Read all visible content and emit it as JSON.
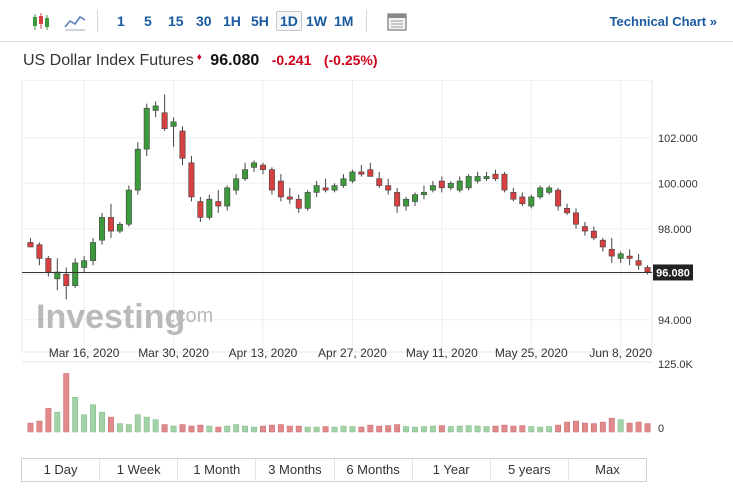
{
  "toolbar": {
    "timeframes": [
      "1",
      "5",
      "15",
      "30",
      "1H",
      "5H",
      "1D",
      "1W",
      "1M"
    ],
    "active_timeframe": "1D",
    "technical_link": "Technical Chart",
    "technical_chevron": "»"
  },
  "header": {
    "name": "US Dollar Index Futures",
    "price": "96.080",
    "change": "-0.241",
    "change_pct": "(-0.25%)"
  },
  "ranges": [
    "1 Day",
    "1 Week",
    "1 Month",
    "3 Months",
    "6 Months",
    "1 Year",
    "5 years",
    "Max"
  ],
  "watermark": {
    "brand": "Investing",
    "suffix": ".com"
  },
  "colors": {
    "up": "#3c9a3c",
    "down": "#d64040",
    "accent": "#1a5aa0",
    "vol_up": "#a4d2a8",
    "vol_down": "#e08a8c"
  },
  "chart_data": {
    "type": "candlestick",
    "y_ticks": [
      "102.000",
      "100.000",
      "98.000",
      "96.000",
      "94.000"
    ],
    "ylim": [
      93.2,
      104.1
    ],
    "x_tick_labels": [
      "Mar 16, 2020",
      "Mar 30, 2020",
      "Apr 13, 2020",
      "Apr 27, 2020",
      "May 11, 2020",
      "May 25, 2020",
      "Jun 8, 2020"
    ],
    "x_tick_index": [
      6,
      16,
      26,
      36,
      46,
      56,
      66
    ],
    "last_price_label": "96.080",
    "last_price": 96.08,
    "volume_ticks": [
      "125.0K",
      "0"
    ],
    "volume_max": 125,
    "candles": [
      {
        "o": 97.4,
        "h": 97.6,
        "l": 97.2,
        "c": 97.2,
        "v": 18
      },
      {
        "o": 97.3,
        "h": 97.4,
        "l": 96.4,
        "c": 96.7,
        "v": 22
      },
      {
        "o": 96.7,
        "h": 96.8,
        "l": 95.9,
        "c": 96.1,
        "v": 48
      },
      {
        "o": 95.8,
        "h": 96.7,
        "l": 95.3,
        "c": 96.1,
        "v": 40
      },
      {
        "o": 96.0,
        "h": 96.3,
        "l": 94.9,
        "c": 95.5,
        "v": 118
      },
      {
        "o": 95.5,
        "h": 96.7,
        "l": 95.4,
        "c": 96.5,
        "v": 70
      },
      {
        "o": 96.3,
        "h": 96.8,
        "l": 96.1,
        "c": 96.6,
        "v": 35
      },
      {
        "o": 96.6,
        "h": 97.6,
        "l": 96.4,
        "c": 97.4,
        "v": 55
      },
      {
        "o": 97.5,
        "h": 98.7,
        "l": 97.3,
        "c": 98.5,
        "v": 40
      },
      {
        "o": 98.5,
        "h": 99.1,
        "l": 97.6,
        "c": 97.9,
        "v": 30
      },
      {
        "o": 97.9,
        "h": 98.3,
        "l": 97.8,
        "c": 98.2,
        "v": 17
      },
      {
        "o": 98.2,
        "h": 99.9,
        "l": 98.1,
        "c": 99.7,
        "v": 15
      },
      {
        "o": 99.7,
        "h": 101.8,
        "l": 99.5,
        "c": 101.5,
        "v": 35
      },
      {
        "o": 101.5,
        "h": 103.5,
        "l": 101.2,
        "c": 103.3,
        "v": 30
      },
      {
        "o": 103.2,
        "h": 103.6,
        "l": 102.9,
        "c": 103.4,
        "v": 25
      },
      {
        "o": 103.1,
        "h": 103.9,
        "l": 102.3,
        "c": 102.4,
        "v": 15
      },
      {
        "o": 102.5,
        "h": 102.9,
        "l": 101.6,
        "c": 102.7,
        "v": 12
      },
      {
        "o": 102.3,
        "h": 102.5,
        "l": 100.8,
        "c": 101.1,
        "v": 15
      },
      {
        "o": 100.9,
        "h": 101.2,
        "l": 99.2,
        "c": 99.4,
        "v": 12
      },
      {
        "o": 99.2,
        "h": 99.4,
        "l": 98.3,
        "c": 98.5,
        "v": 14
      },
      {
        "o": 98.5,
        "h": 99.5,
        "l": 98.4,
        "c": 99.3,
        "v": 12
      },
      {
        "o": 99.2,
        "h": 99.7,
        "l": 98.7,
        "c": 99.0,
        "v": 10
      },
      {
        "o": 99.0,
        "h": 99.9,
        "l": 98.8,
        "c": 99.8,
        "v": 12
      },
      {
        "o": 99.7,
        "h": 100.4,
        "l": 99.5,
        "c": 100.2,
        "v": 15
      },
      {
        "o": 100.2,
        "h": 100.9,
        "l": 100.1,
        "c": 100.6,
        "v": 12
      },
      {
        "o": 100.7,
        "h": 101.0,
        "l": 100.5,
        "c": 100.9,
        "v": 10
      },
      {
        "o": 100.8,
        "h": 100.9,
        "l": 100.4,
        "c": 100.6,
        "v": 12
      },
      {
        "o": 100.6,
        "h": 100.7,
        "l": 99.5,
        "c": 99.7,
        "v": 14
      },
      {
        "o": 100.1,
        "h": 100.4,
        "l": 99.2,
        "c": 99.4,
        "v": 15
      },
      {
        "o": 99.4,
        "h": 99.8,
        "l": 99.1,
        "c": 99.3,
        "v": 12
      },
      {
        "o": 99.3,
        "h": 99.5,
        "l": 98.7,
        "c": 98.9,
        "v": 12
      },
      {
        "o": 98.9,
        "h": 99.7,
        "l": 98.8,
        "c": 99.6,
        "v": 10
      },
      {
        "o": 99.6,
        "h": 100.1,
        "l": 99.4,
        "c": 99.9,
        "v": 10
      },
      {
        "o": 99.8,
        "h": 100.2,
        "l": 99.6,
        "c": 99.7,
        "v": 11
      },
      {
        "o": 99.7,
        "h": 100.0,
        "l": 99.6,
        "c": 99.9,
        "v": 10
      },
      {
        "o": 99.9,
        "h": 100.4,
        "l": 99.8,
        "c": 100.2,
        "v": 12
      },
      {
        "o": 100.1,
        "h": 100.6,
        "l": 100.0,
        "c": 100.5,
        "v": 11
      },
      {
        "o": 100.5,
        "h": 100.8,
        "l": 100.3,
        "c": 100.4,
        "v": 10
      },
      {
        "o": 100.6,
        "h": 100.9,
        "l": 100.3,
        "c": 100.3,
        "v": 14
      },
      {
        "o": 100.2,
        "h": 100.5,
        "l": 99.8,
        "c": 99.9,
        "v": 12
      },
      {
        "o": 99.9,
        "h": 100.2,
        "l": 99.5,
        "c": 99.7,
        "v": 13
      },
      {
        "o": 99.6,
        "h": 99.8,
        "l": 98.7,
        "c": 99.0,
        "v": 15
      },
      {
        "o": 99.0,
        "h": 99.4,
        "l": 98.8,
        "c": 99.3,
        "v": 11
      },
      {
        "o": 99.2,
        "h": 99.6,
        "l": 99.0,
        "c": 99.5,
        "v": 10
      },
      {
        "o": 99.5,
        "h": 99.9,
        "l": 99.3,
        "c": 99.6,
        "v": 11
      },
      {
        "o": 99.7,
        "h": 100.1,
        "l": 99.6,
        "c": 99.9,
        "v": 12
      },
      {
        "o": 100.1,
        "h": 100.3,
        "l": 99.6,
        "c": 99.8,
        "v": 13
      },
      {
        "o": 99.8,
        "h": 100.1,
        "l": 99.7,
        "c": 100.0,
        "v": 11
      },
      {
        "o": 99.7,
        "h": 100.3,
        "l": 99.6,
        "c": 100.1,
        "v": 12
      },
      {
        "o": 99.8,
        "h": 100.4,
        "l": 99.7,
        "c": 100.3,
        "v": 13
      },
      {
        "o": 100.1,
        "h": 100.5,
        "l": 100.0,
        "c": 100.3,
        "v": 12
      },
      {
        "o": 100.2,
        "h": 100.5,
        "l": 100.1,
        "c": 100.3,
        "v": 11
      },
      {
        "o": 100.4,
        "h": 100.6,
        "l": 100.1,
        "c": 100.2,
        "v": 12
      },
      {
        "o": 100.4,
        "h": 100.5,
        "l": 99.6,
        "c": 99.7,
        "v": 14
      },
      {
        "o": 99.6,
        "h": 99.8,
        "l": 99.2,
        "c": 99.3,
        "v": 12
      },
      {
        "o": 99.4,
        "h": 99.6,
        "l": 99.0,
        "c": 99.1,
        "v": 13
      },
      {
        "o": 99.0,
        "h": 99.5,
        "l": 98.9,
        "c": 99.4,
        "v": 11
      },
      {
        "o": 99.4,
        "h": 99.9,
        "l": 99.3,
        "c": 99.8,
        "v": 10
      },
      {
        "o": 99.6,
        "h": 99.9,
        "l": 99.5,
        "c": 99.8,
        "v": 11
      },
      {
        "o": 99.7,
        "h": 99.8,
        "l": 98.8,
        "c": 99.0,
        "v": 14
      },
      {
        "o": 98.9,
        "h": 99.1,
        "l": 98.6,
        "c": 98.7,
        "v": 20
      },
      {
        "o": 98.7,
        "h": 98.9,
        "l": 98.0,
        "c": 98.2,
        "v": 22
      },
      {
        "o": 98.1,
        "h": 98.3,
        "l": 97.7,
        "c": 97.9,
        "v": 18
      },
      {
        "o": 97.9,
        "h": 98.1,
        "l": 97.5,
        "c": 97.6,
        "v": 17
      },
      {
        "o": 97.5,
        "h": 97.6,
        "l": 97.0,
        "c": 97.2,
        "v": 20
      },
      {
        "o": 97.1,
        "h": 97.6,
        "l": 96.5,
        "c": 96.8,
        "v": 28
      },
      {
        "o": 96.7,
        "h": 97.0,
        "l": 96.5,
        "c": 96.9,
        "v": 25
      },
      {
        "o": 96.8,
        "h": 97.1,
        "l": 96.4,
        "c": 96.7,
        "v": 18
      },
      {
        "o": 96.6,
        "h": 96.9,
        "l": 96.2,
        "c": 96.4,
        "v": 20
      },
      {
        "o": 96.3,
        "h": 96.4,
        "l": 96.0,
        "c": 96.1,
        "v": 17
      }
    ]
  }
}
